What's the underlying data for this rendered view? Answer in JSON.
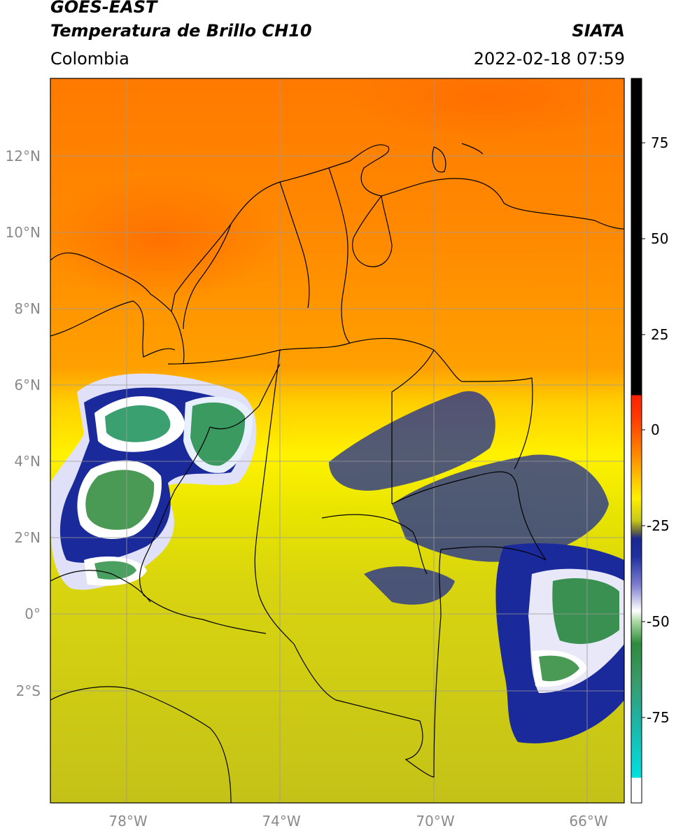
{
  "header": {
    "satellite": "GOES-EAST",
    "product": "Temperatura de Brillo CH10",
    "source": "SIATA",
    "region": "Colombia",
    "timestamp": "2022-02-18 07:59"
  },
  "map": {
    "lat_labels": [
      "12°N",
      "10°N",
      "8°N",
      "6°N",
      "4°N",
      "2°N",
      "0°",
      "2°S"
    ],
    "lon_labels": [
      "78°W",
      "74°W",
      "70°W",
      "66°W"
    ]
  },
  "colorbar": {
    "ticks": [
      "75",
      "50",
      "25",
      "0",
      "-25",
      "-50",
      "-75"
    ],
    "colors": {
      "black": "#000000",
      "red": "#ff2000",
      "orange": "#ff8a00",
      "yellow": "#ffea00",
      "olive": "#c7c71c",
      "navy": "#0d1a8a",
      "white": "#ffffff",
      "green": "#2e8b3e",
      "cyan": "#00d0d0"
    }
  }
}
